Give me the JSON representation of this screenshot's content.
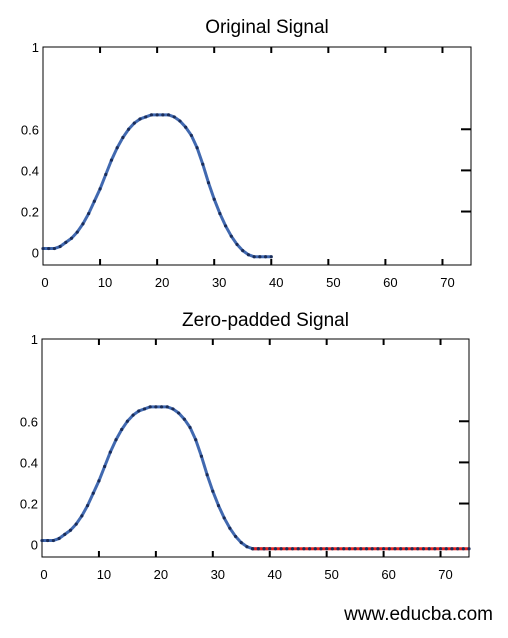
{
  "watermark": "www.educba.com",
  "chart_data": [
    {
      "type": "line",
      "title": "Original Signal",
      "xlim": [
        0,
        75
      ],
      "ylim": [
        -0.06,
        1
      ],
      "x_ticks": [
        0,
        10,
        20,
        30,
        40,
        50,
        60,
        70
      ],
      "x_tick_labels": [
        "0",
        "10",
        "20",
        "30",
        "40",
        "50",
        "60",
        "70"
      ],
      "y_ticks": [
        0,
        0.2,
        0.4,
        0.6,
        1
      ],
      "y_tick_labels": [
        "0",
        "0.2",
        "0.4",
        "0.6",
        "1"
      ],
      "series": [
        {
          "color": "#4169b0",
          "x": [
            0,
            1,
            2,
            3,
            4,
            5,
            6,
            7,
            8,
            9,
            10,
            11,
            12,
            13,
            14,
            15,
            16,
            17,
            18,
            19,
            20,
            21,
            22,
            23,
            24,
            25,
            26,
            27,
            28,
            29,
            30,
            31,
            32,
            33,
            34,
            35,
            36,
            37,
            38,
            39,
            40
          ],
          "values": [
            0.02,
            0.02,
            0.02,
            0.03,
            0.05,
            0.07,
            0.1,
            0.14,
            0.19,
            0.25,
            0.31,
            0.38,
            0.45,
            0.51,
            0.56,
            0.6,
            0.63,
            0.65,
            0.66,
            0.67,
            0.67,
            0.67,
            0.67,
            0.66,
            0.64,
            0.61,
            0.57,
            0.51,
            0.43,
            0.34,
            0.26,
            0.19,
            0.13,
            0.08,
            0.04,
            0.01,
            -0.01,
            -0.02,
            -0.02,
            -0.02,
            -0.02
          ]
        }
      ]
    },
    {
      "type": "line",
      "title": "Zero-padded Signal",
      "xlim": [
        0,
        75
      ],
      "ylim": [
        -0.06,
        1
      ],
      "x_ticks": [
        0,
        10,
        20,
        30,
        40,
        50,
        60,
        70
      ],
      "x_tick_labels": [
        "0",
        "10",
        "20",
        "30",
        "40",
        "50",
        "60",
        "70"
      ],
      "y_ticks": [
        0,
        0.2,
        0.4,
        0.6,
        1
      ],
      "y_tick_labels": [
        "0",
        "0.2",
        "0.4",
        "0.6",
        "1"
      ],
      "series": [
        {
          "color": "#4169b0",
          "x": [
            0,
            1,
            2,
            3,
            4,
            5,
            6,
            7,
            8,
            9,
            10,
            11,
            12,
            13,
            14,
            15,
            16,
            17,
            18,
            19,
            20,
            21,
            22,
            23,
            24,
            25,
            26,
            27,
            28,
            29,
            30,
            31,
            32,
            33,
            34,
            35,
            36,
            37,
            38,
            39,
            40
          ],
          "values": [
            0.02,
            0.02,
            0.02,
            0.03,
            0.05,
            0.07,
            0.1,
            0.14,
            0.19,
            0.25,
            0.31,
            0.38,
            0.45,
            0.51,
            0.56,
            0.6,
            0.63,
            0.65,
            0.66,
            0.67,
            0.67,
            0.67,
            0.67,
            0.66,
            0.64,
            0.61,
            0.57,
            0.51,
            0.43,
            0.34,
            0.26,
            0.19,
            0.13,
            0.08,
            0.04,
            0.01,
            -0.01,
            -0.02,
            -0.02,
            -0.02,
            -0.02
          ]
        },
        {
          "color": "#e8201c",
          "x": [
            37,
            38,
            39,
            40,
            41,
            42,
            43,
            44,
            45,
            46,
            47,
            48,
            49,
            50,
            51,
            52,
            53,
            54,
            55,
            56,
            57,
            58,
            59,
            60,
            61,
            62,
            63,
            64,
            65,
            66,
            67,
            68,
            69,
            70,
            71,
            72,
            73,
            74,
            75
          ],
          "values": [
            -0.02,
            -0.02,
            -0.02,
            -0.02,
            -0.02,
            -0.02,
            -0.02,
            -0.02,
            -0.02,
            -0.02,
            -0.02,
            -0.02,
            -0.02,
            -0.02,
            -0.02,
            -0.02,
            -0.02,
            -0.02,
            -0.02,
            -0.02,
            -0.02,
            -0.02,
            -0.02,
            -0.02,
            -0.02,
            -0.02,
            -0.02,
            -0.02,
            -0.02,
            -0.02,
            -0.02,
            -0.02,
            -0.02,
            -0.02,
            -0.02,
            -0.02,
            -0.02,
            -0.02,
            -0.02
          ]
        }
      ]
    }
  ]
}
